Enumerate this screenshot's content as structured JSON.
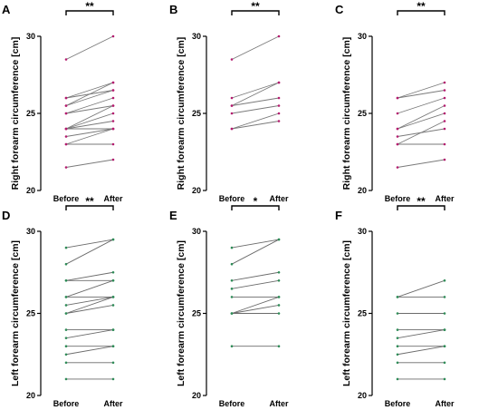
{
  "figure": {
    "panels": [
      "A",
      "B",
      "C",
      "D",
      "E",
      "F"
    ]
  },
  "chart_data": [
    {
      "panel": "A",
      "type": "line",
      "ylabel": "Right forearm circumference [cm]",
      "categories": [
        "Before",
        "After"
      ],
      "ylim": [
        20,
        30
      ],
      "yticks": [
        "20",
        "25",
        "30"
      ],
      "significance": "**",
      "line_color": "#7a7a7a",
      "point_color": "#b31b6e",
      "pairs": [
        [
          28.5,
          30
        ],
        [
          26,
          27
        ],
        [
          26,
          26.5
        ],
        [
          25.5,
          27
        ],
        [
          25.5,
          26.5
        ],
        [
          25,
          26
        ],
        [
          25,
          25.5
        ],
        [
          24,
          25.5
        ],
        [
          24,
          25
        ],
        [
          24,
          24
        ],
        [
          24,
          24.5
        ],
        [
          23.5,
          24
        ],
        [
          23,
          23
        ],
        [
          23,
          24
        ],
        [
          21.5,
          22
        ]
      ]
    },
    {
      "panel": "B",
      "type": "line",
      "ylabel": "Right forearm circumference [cm]",
      "categories": [
        "Before",
        "After"
      ],
      "ylim": [
        20,
        30
      ],
      "yticks": [
        "20",
        "25",
        "30"
      ],
      "significance": "**",
      "line_color": "#7a7a7a",
      "point_color": "#b31b6e",
      "pairs": [
        [
          28.5,
          30
        ],
        [
          26,
          27
        ],
        [
          25.5,
          27
        ],
        [
          25.5,
          26
        ],
        [
          25,
          25.5
        ],
        [
          24,
          25
        ],
        [
          24,
          24.5
        ]
      ]
    },
    {
      "panel": "C",
      "type": "line",
      "ylabel": "Right forearm circumference [cm]",
      "categories": [
        "Before",
        "After"
      ],
      "ylim": [
        20,
        30
      ],
      "yticks": [
        "20",
        "25",
        "30"
      ],
      "significance": "**",
      "line_color": "#7a7a7a",
      "point_color": "#b31b6e",
      "pairs": [
        [
          26,
          26.5
        ],
        [
          26,
          27
        ],
        [
          25,
          26
        ],
        [
          24,
          25.5
        ],
        [
          24,
          25
        ],
        [
          23.5,
          24
        ],
        [
          23,
          24.5
        ],
        [
          23,
          23
        ],
        [
          21.5,
          22
        ]
      ]
    },
    {
      "panel": "D",
      "type": "line",
      "ylabel": "Left forearm circumference [cm]",
      "categories": [
        "Before",
        "After"
      ],
      "ylim": [
        20,
        30
      ],
      "yticks": [
        "20",
        "25",
        "30"
      ],
      "significance": "**",
      "line_color": "#6b6b6b",
      "point_color": "#2e8b57",
      "pairs": [
        [
          29,
          29.5
        ],
        [
          28,
          29.5
        ],
        [
          27,
          27.5
        ],
        [
          27,
          27
        ],
        [
          26,
          26
        ],
        [
          26,
          27
        ],
        [
          25.5,
          26
        ],
        [
          25,
          26
        ],
        [
          25,
          25.5
        ],
        [
          24,
          24
        ],
        [
          23.5,
          24
        ],
        [
          23,
          23
        ],
        [
          22.5,
          23
        ],
        [
          22,
          22
        ],
        [
          21,
          21
        ]
      ]
    },
    {
      "panel": "E",
      "type": "line",
      "ylabel": "Left forearm circumference [cm]",
      "categories": [
        "Before",
        "After"
      ],
      "ylim": [
        20,
        30
      ],
      "yticks": [
        "20",
        "25",
        "30"
      ],
      "significance": "*",
      "line_color": "#6b6b6b",
      "point_color": "#2e8b57",
      "pairs": [
        [
          29,
          29.5
        ],
        [
          28,
          29.5
        ],
        [
          27,
          27.5
        ],
        [
          26.5,
          27
        ],
        [
          26,
          26
        ],
        [
          25,
          26
        ],
        [
          25,
          25.5
        ],
        [
          25,
          25
        ],
        [
          23,
          23
        ]
      ]
    },
    {
      "panel": "F",
      "type": "line",
      "ylabel": "Left forearm circumference [cm]",
      "categories": [
        "Before",
        "After"
      ],
      "ylim": [
        20,
        30
      ],
      "yticks": [
        "20",
        "25",
        "30"
      ],
      "significance": "**",
      "line_color": "#6b6b6b",
      "point_color": "#2e8b57",
      "pairs": [
        [
          26,
          27
        ],
        [
          26,
          26
        ],
        [
          25,
          25
        ],
        [
          24,
          24
        ],
        [
          23.5,
          24
        ],
        [
          23,
          23
        ],
        [
          22.5,
          23
        ],
        [
          22,
          22
        ],
        [
          21,
          21
        ]
      ]
    }
  ]
}
